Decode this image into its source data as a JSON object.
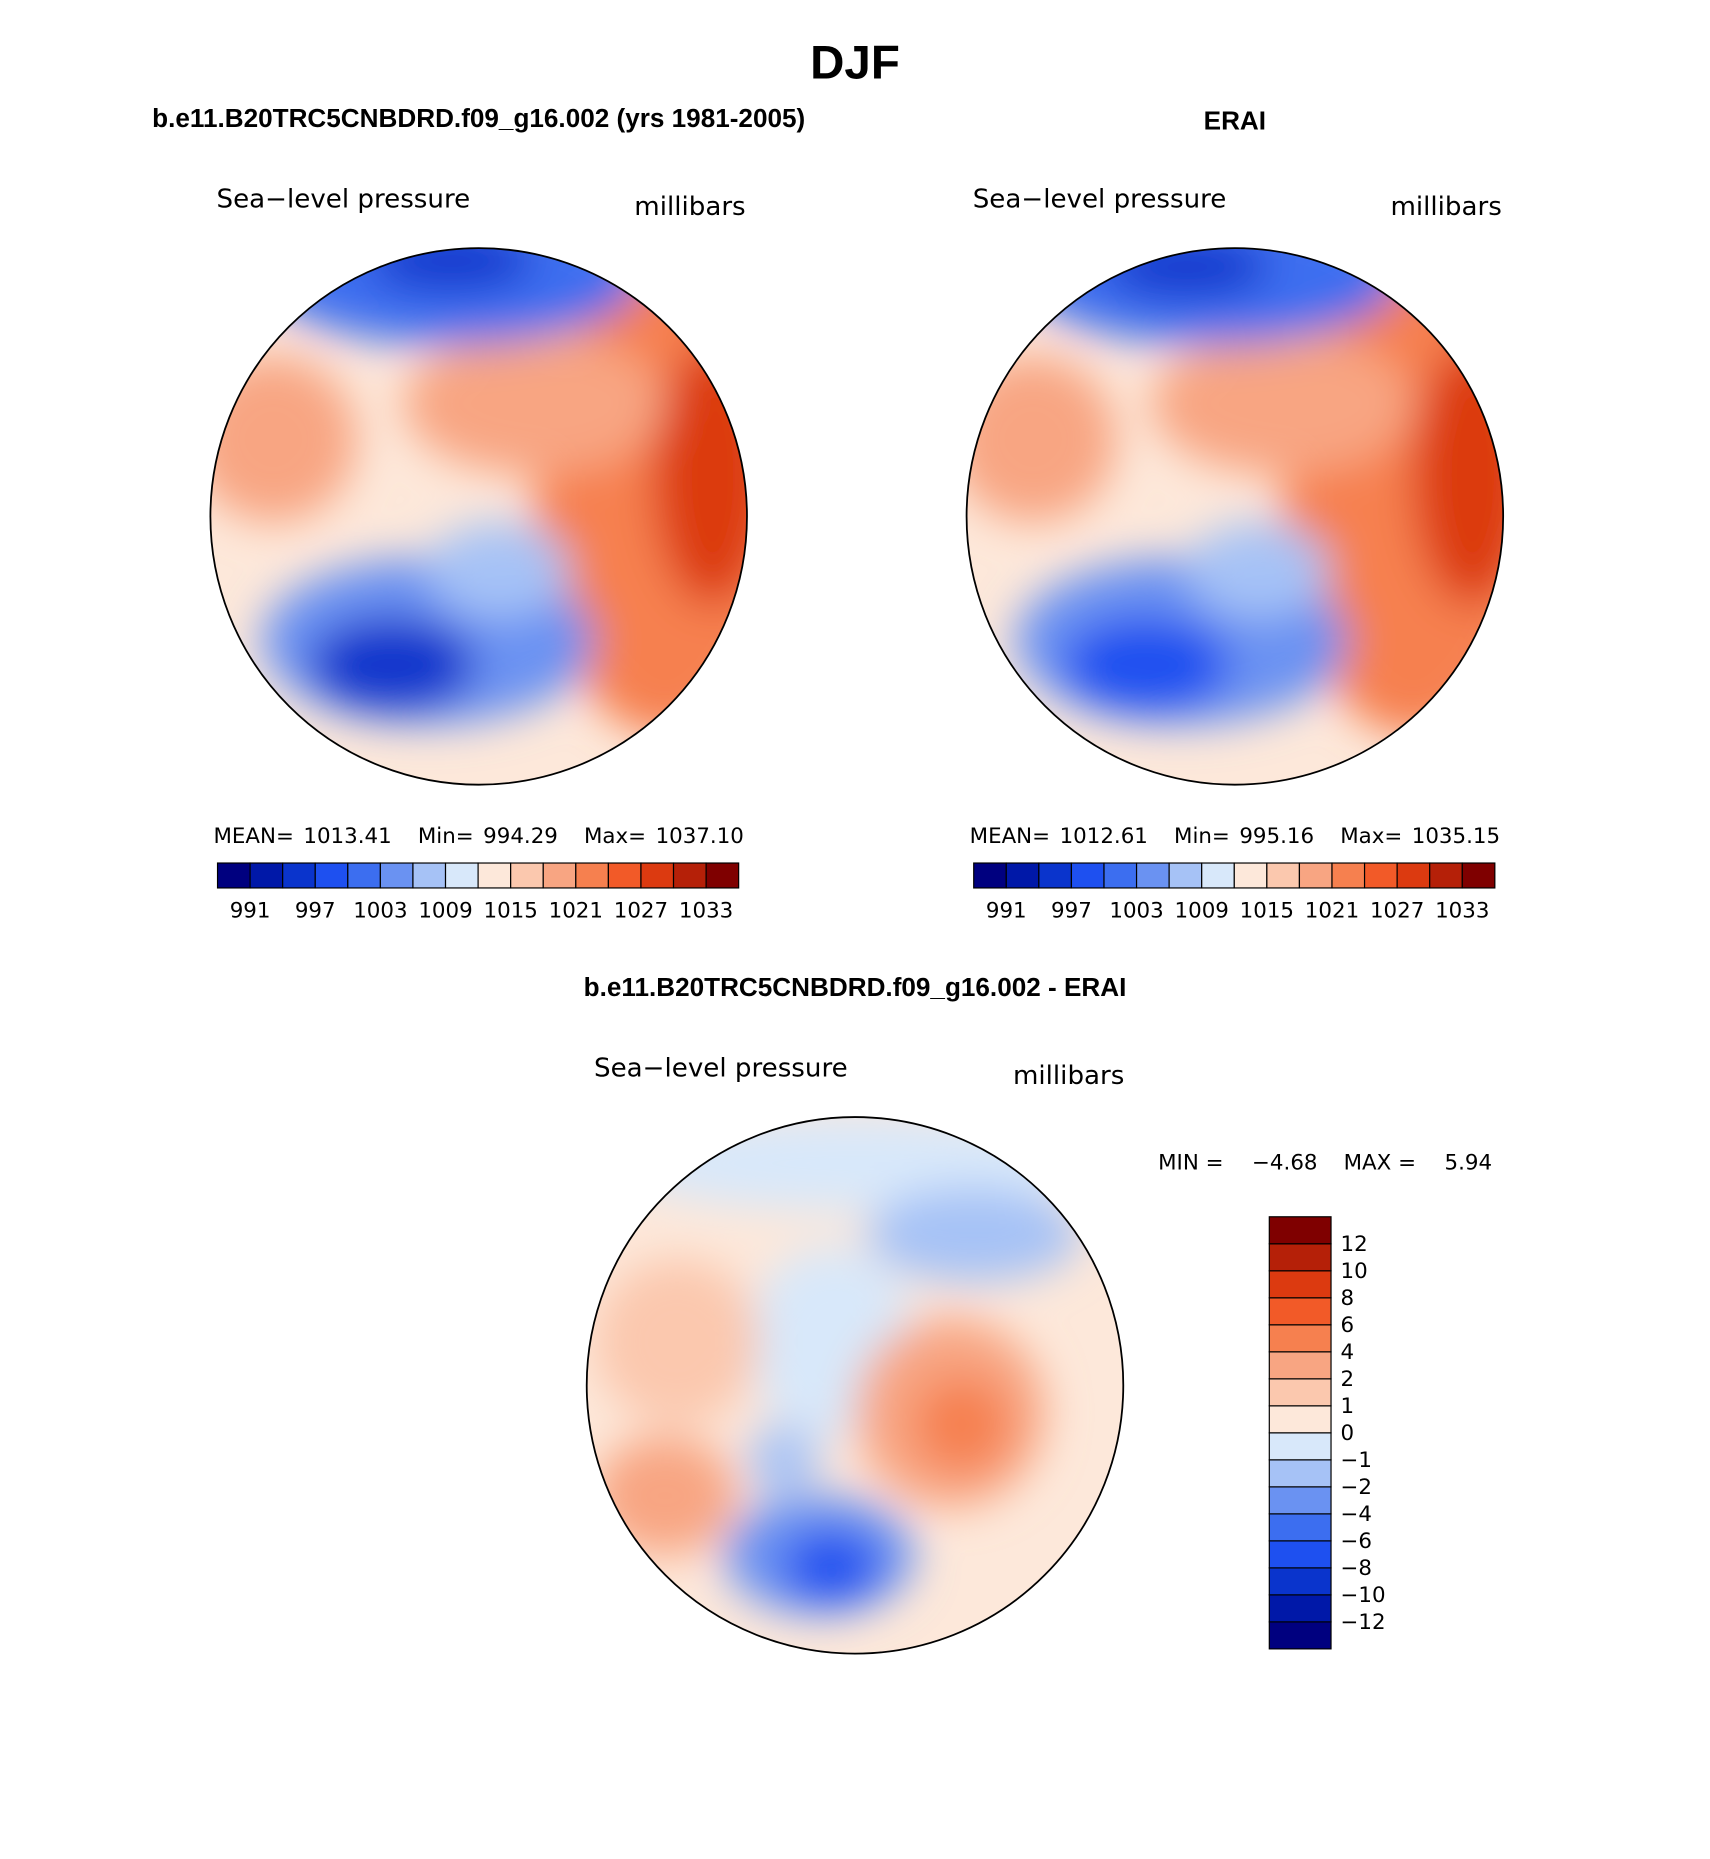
{
  "title": "DJF",
  "panels": [
    {
      "title": "b.e11.B20TRC5CNBDRD.f09_g16.002 (yrs 1981-2005)",
      "left_label": "Sea−level pressure",
      "right_label": "millibars",
      "stats": [
        {
          "name": "MEAN=",
          "value": 1013.41
        },
        {
          "name": "Min=",
          "value": 994.29
        },
        {
          "name": "Max=",
          "value": {
            "value": 1037.1,
            "label": "1037.10"
          }
        }
      ],
      "colorbar": {
        "colors": [
          "#00007f",
          "#0018a8",
          "#0a34cc",
          "#1e50f0",
          "#3c6ef0",
          "#6a92f2",
          "#a6c2f6",
          "#d8e8fa",
          "#fde8da",
          "#fbc8ae",
          "#f8a582",
          "#f6804f",
          "#f25a28",
          "#dc3a10",
          "#b52008",
          "#7f0000"
        ],
        "labels": [
          991,
          997,
          1003,
          1009,
          1015,
          1021,
          1027,
          1033
        ]
      }
    },
    {
      "title": "ERAI",
      "left_label": "Sea−level pressure",
      "right_label": "millibars",
      "stats": [
        {
          "name": "MEAN=",
          "value": 1012.61
        },
        {
          "name": "Min=",
          "value": 995.16
        },
        {
          "name": "Max=",
          "value": 1035.15
        }
      ],
      "colorbar": {
        "colors": [
          "#00007f",
          "#0018a8",
          "#0a34cc",
          "#1e50f0",
          "#3c6ef0",
          "#6a92f2",
          "#a6c2f6",
          "#d8e8fa",
          "#fde8da",
          "#fbc8ae",
          "#f8a582",
          "#f6804f",
          "#f25a28",
          "#dc3a10",
          "#b52008",
          "#7f0000"
        ],
        "labels": [
          991,
          997,
          1003,
          1009,
          1015,
          1021,
          1027,
          1033
        ]
      }
    },
    {
      "title": "b.e11.B20TRC5CNBDRD.f09_g16.002 - ERAI",
      "left_label": "Sea−level pressure",
      "right_label": "millibars",
      "stats": [
        {
          "name": "MIN =",
          "value": {
            "value": -4.68,
            "label": "−4.68"
          }
        },
        {
          "name": "MAX =",
          "value": 5.94
        }
      ],
      "colorbar": {
        "colors": [
          "#00007f",
          "#0018a8",
          "#0a34cc",
          "#1e50f0",
          "#3c6ef0",
          "#6a92f2",
          "#a6c2f6",
          "#d8e8fa",
          "#fde8da",
          "#fbc8ae",
          "#f8a582",
          "#f6804f",
          "#f25a28",
          "#dc3a10",
          "#b52008",
          "#7f0000"
        ],
        "labels": [
          {
            "value": -12,
            "label": "−12"
          },
          {
            "value": -10,
            "label": "−10"
          },
          {
            "value": -8,
            "label": "−8"
          },
          {
            "value": -6,
            "label": "−6"
          },
          {
            "value": -4,
            "label": "−4"
          },
          {
            "value": -2,
            "label": "−2"
          },
          {
            "value": -1,
            "label": "−1"
          },
          0,
          1,
          2,
          4,
          6,
          8,
          10,
          12
        ]
      }
    }
  ]
}
